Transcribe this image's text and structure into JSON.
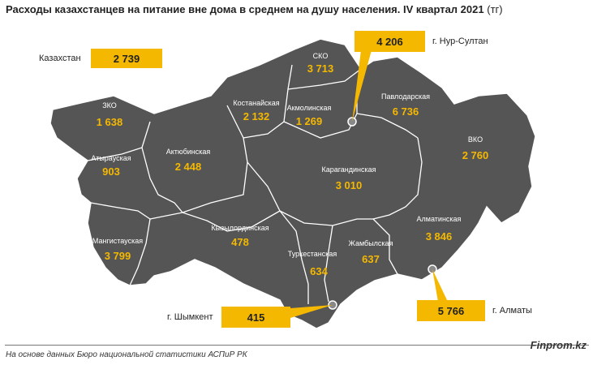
{
  "title": "Расходы казахстанцев на питание вне дома в среднем на душу населения. IV квартал 2021",
  "unit": "(тг)",
  "national": {
    "label": "Казахстан",
    "value": "2 739"
  },
  "regions": [
    {
      "name": "СКО",
      "value": "3 713"
    },
    {
      "name": "Костанайская",
      "value": "2 132"
    },
    {
      "name": "Акмолинская",
      "value": "1 269"
    },
    {
      "name": "Павлодарская",
      "value": "6 736"
    },
    {
      "name": "ЗКО",
      "value": "1 638"
    },
    {
      "name": "Атырауская",
      "value": "903"
    },
    {
      "name": "Актюбинская",
      "value": "2 448"
    },
    {
      "name": "ВКО",
      "value": "2 760"
    },
    {
      "name": "Карагандинская",
      "value": "3 010"
    },
    {
      "name": "Мангистауская",
      "value": "3 799"
    },
    {
      "name": "Кызылординская",
      "value": "478"
    },
    {
      "name": "Туркестанская",
      "value": "634"
    },
    {
      "name": "Жамбылская",
      "value": "637"
    },
    {
      "name": "Алматинская",
      "value": "3 846"
    }
  ],
  "cities": [
    {
      "name": "г. Нур-Султан",
      "value": "4 206"
    },
    {
      "name": "г. Шымкент",
      "value": "415"
    },
    {
      "name": "г. Алматы",
      "value": "5 766"
    }
  ],
  "colors": {
    "land": "#555555",
    "border": "#ffffff",
    "accent": "#f5b800",
    "text_on_map": "#ffffff"
  },
  "footer": {
    "source": "На основе данных Бюро национальной статистики АСПиР РК",
    "brand": "Finprom.kz"
  }
}
